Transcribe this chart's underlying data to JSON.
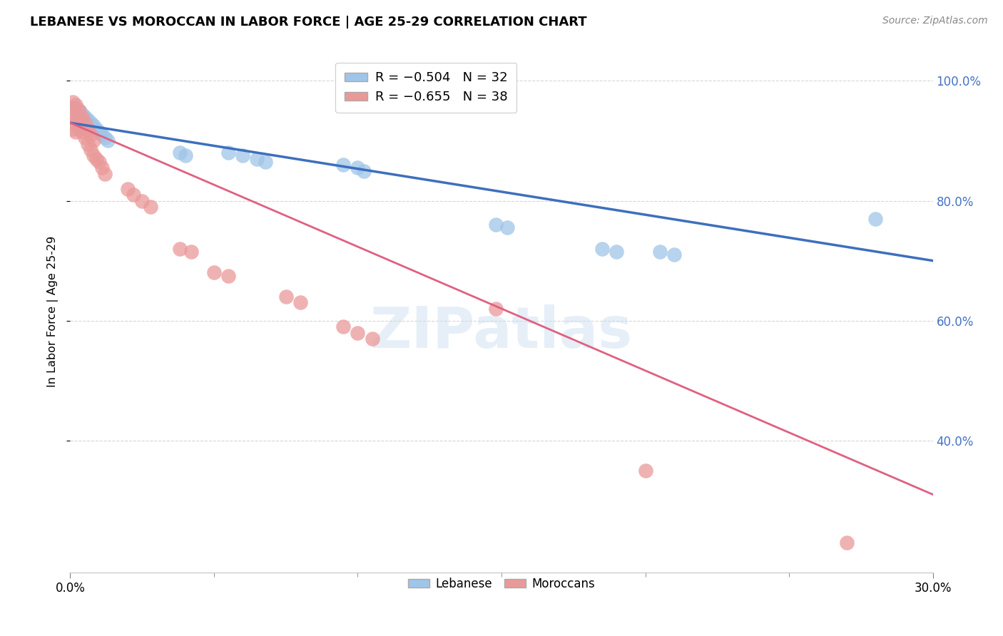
{
  "title": "LEBANESE VS MOROCCAN IN LABOR FORCE | AGE 25-29 CORRELATION CHART",
  "source": "Source: ZipAtlas.com",
  "ylabel": "In Labor Force | Age 25-29",
  "xlim": [
    0.0,
    0.3
  ],
  "ylim": [
    0.18,
    1.05
  ],
  "xtick_positions": [
    0.0,
    0.3
  ],
  "xtick_labels": [
    "0.0%",
    "30.0%"
  ],
  "ytick_positions": [
    0.4,
    0.6,
    0.8,
    1.0
  ],
  "ytick_labels": [
    "40.0%",
    "60.0%",
    "80.0%",
    "100.0%"
  ],
  "legend_blue_r": "R = −0.504",
  "legend_blue_n": "N = 32",
  "legend_pink_r": "R = −0.655",
  "legend_pink_n": "N = 38",
  "blue_color": "#9fc5e8",
  "pink_color": "#ea9999",
  "blue_line_color": "#3d6fbd",
  "pink_line_color": "#e06080",
  "watermark": "ZIPatlas",
  "blue_scatter_x": [
    0.001,
    0.001,
    0.002,
    0.002,
    0.003,
    0.003,
    0.004,
    0.005,
    0.006,
    0.007,
    0.008,
    0.009,
    0.01,
    0.011,
    0.012,
    0.013,
    0.038,
    0.04,
    0.055,
    0.06,
    0.065,
    0.068,
    0.095,
    0.1,
    0.102,
    0.148,
    0.152,
    0.185,
    0.19,
    0.205,
    0.21,
    0.28
  ],
  "blue_scatter_y": [
    0.955,
    0.93,
    0.955,
    0.93,
    0.95,
    0.92,
    0.945,
    0.94,
    0.935,
    0.93,
    0.925,
    0.92,
    0.915,
    0.91,
    0.905,
    0.9,
    0.88,
    0.875,
    0.88,
    0.875,
    0.87,
    0.865,
    0.86,
    0.855,
    0.85,
    0.76,
    0.755,
    0.72,
    0.715,
    0.715,
    0.71,
    0.77
  ],
  "pink_scatter_x": [
    0.001,
    0.001,
    0.001,
    0.002,
    0.002,
    0.002,
    0.003,
    0.003,
    0.004,
    0.004,
    0.005,
    0.005,
    0.006,
    0.006,
    0.007,
    0.007,
    0.008,
    0.008,
    0.009,
    0.01,
    0.011,
    0.012,
    0.02,
    0.022,
    0.025,
    0.028,
    0.038,
    0.042,
    0.05,
    0.055,
    0.075,
    0.08,
    0.095,
    0.1,
    0.105,
    0.148,
    0.2,
    0.27
  ],
  "pink_scatter_y": [
    0.965,
    0.945,
    0.92,
    0.96,
    0.94,
    0.915,
    0.95,
    0.925,
    0.94,
    0.915,
    0.93,
    0.905,
    0.92,
    0.895,
    0.91,
    0.885,
    0.9,
    0.875,
    0.87,
    0.865,
    0.855,
    0.845,
    0.82,
    0.81,
    0.8,
    0.79,
    0.72,
    0.715,
    0.68,
    0.675,
    0.64,
    0.63,
    0.59,
    0.58,
    0.57,
    0.62,
    0.35,
    0.23
  ],
  "blue_line_x0": 0.0,
  "blue_line_y0": 0.93,
  "blue_line_x1": 0.3,
  "blue_line_y1": 0.7,
  "pink_line_x0": 0.0,
  "pink_line_y0": 0.93,
  "pink_line_x1": 0.3,
  "pink_line_y1": 0.31
}
